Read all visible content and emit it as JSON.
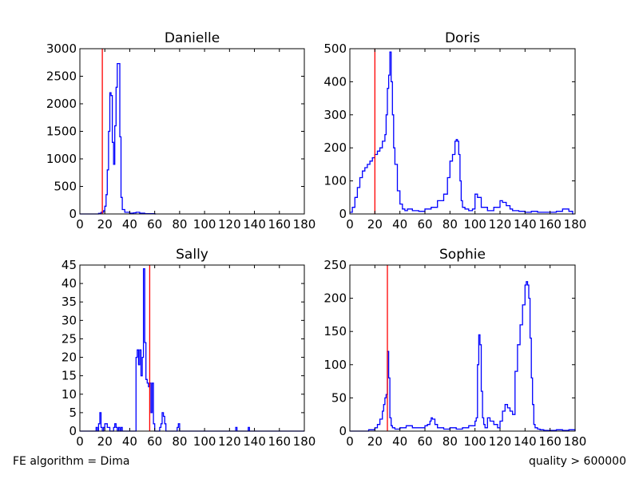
{
  "footer": {
    "left": "FE algorithm = Dima",
    "right": "quality > 600000"
  },
  "colors": {
    "histogram": "#0000ff",
    "threshold": "#ff0000",
    "axes": "#000000"
  },
  "chart_data": [
    {
      "type": "histogram",
      "title": "Danielle",
      "xlim": [
        0,
        180
      ],
      "ylim": [
        0,
        3000
      ],
      "xticks": [
        0,
        20,
        40,
        60,
        80,
        100,
        120,
        140,
        160,
        180
      ],
      "yticks": [
        0,
        500,
        1000,
        1500,
        2000,
        2500,
        3000
      ],
      "threshold_x": 18,
      "bin_width": 1,
      "x": [
        0,
        15,
        17,
        19,
        20,
        21,
        22,
        23,
        24,
        25,
        26,
        27,
        28,
        29,
        30,
        31,
        32,
        33,
        34,
        36,
        40,
        43,
        45,
        48,
        52,
        60
      ],
      "values": [
        0,
        10,
        30,
        60,
        140,
        350,
        800,
        1500,
        2200,
        2150,
        1300,
        900,
        1600,
        2300,
        2730,
        2730,
        1400,
        300,
        80,
        30,
        15,
        20,
        30,
        15,
        5,
        0
      ]
    },
    {
      "type": "histogram",
      "title": "Doris",
      "xlim": [
        0,
        180
      ],
      "ylim": [
        0,
        500
      ],
      "xticks": [
        0,
        20,
        40,
        60,
        80,
        100,
        120,
        140,
        160,
        180
      ],
      "yticks": [
        0,
        100,
        200,
        300,
        400,
        500
      ],
      "threshold_x": 20,
      "bin_width": 1,
      "x": [
        0,
        2,
        4,
        6,
        8,
        10,
        12,
        14,
        16,
        18,
        20,
        22,
        24,
        26,
        28,
        29,
        30,
        31,
        32,
        33,
        34,
        35,
        36,
        38,
        40,
        42,
        44,
        46,
        50,
        55,
        60,
        65,
        70,
        75,
        78,
        80,
        82,
        84,
        85,
        86,
        87,
        88,
        89,
        90,
        92,
        95,
        98,
        100,
        102,
        105,
        110,
        115,
        120,
        122,
        125,
        128,
        130,
        135,
        140,
        145,
        150,
        155,
        160,
        165,
        170,
        175,
        178
      ],
      "values": [
        5,
        20,
        50,
        80,
        110,
        130,
        140,
        150,
        160,
        170,
        180,
        190,
        200,
        220,
        240,
        300,
        380,
        420,
        490,
        400,
        300,
        200,
        150,
        70,
        30,
        15,
        10,
        15,
        10,
        8,
        15,
        20,
        40,
        60,
        110,
        160,
        180,
        220,
        225,
        220,
        180,
        100,
        40,
        20,
        15,
        10,
        15,
        60,
        50,
        20,
        10,
        20,
        40,
        35,
        25,
        15,
        10,
        8,
        5,
        8,
        5,
        5,
        5,
        8,
        15,
        8,
        0
      ]
    },
    {
      "type": "histogram",
      "title": "Sally",
      "xlim": [
        0,
        180
      ],
      "ylim": [
        0,
        45
      ],
      "xticks": [
        0,
        20,
        40,
        60,
        80,
        100,
        120,
        140,
        160,
        180
      ],
      "yticks": [
        0,
        5,
        10,
        15,
        20,
        25,
        30,
        35,
        40,
        45
      ],
      "threshold_x": 56,
      "bin_width": 1,
      "x": [
        0,
        12,
        13,
        14,
        15,
        16,
        17,
        18,
        19,
        20,
        21,
        22,
        23,
        24,
        25,
        26,
        27,
        28,
        29,
        30,
        31,
        32,
        33,
        34,
        35,
        36,
        37,
        38,
        45,
        46,
        47,
        48,
        49,
        50,
        51,
        52,
        53,
        54,
        55,
        56,
        57,
        58,
        59,
        60,
        61,
        62,
        63,
        64,
        65,
        66,
        67,
        68,
        69,
        70,
        71,
        72,
        73,
        78,
        79,
        80,
        124,
        125,
        126,
        134,
        135,
        136,
        180
      ],
      "values": [
        0,
        0,
        1,
        0,
        2,
        5,
        1,
        0,
        1,
        2,
        2,
        1,
        1,
        0,
        0,
        0,
        1,
        2,
        1,
        0,
        1,
        0,
        1,
        0,
        0,
        0,
        0,
        0,
        20,
        22,
        18,
        22,
        15,
        20,
        44,
        24,
        14,
        13,
        12,
        13,
        5,
        13,
        2,
        0,
        0,
        0,
        0,
        1,
        2,
        5,
        4,
        2,
        0,
        0,
        0,
        0,
        0,
        1,
        2,
        0,
        0,
        1,
        0,
        0,
        1,
        0,
        0
      ]
    },
    {
      "type": "histogram",
      "title": "Sophie",
      "xlim": [
        0,
        180
      ],
      "ylim": [
        0,
        250
      ],
      "xticks": [
        0,
        20,
        40,
        60,
        80,
        100,
        120,
        140,
        160,
        180
      ],
      "yticks": [
        0,
        50,
        100,
        150,
        200,
        250
      ],
      "threshold_x": 30,
      "bin_width": 1,
      "x": [
        0,
        15,
        20,
        22,
        24,
        26,
        27,
        28,
        29,
        30,
        31,
        32,
        33,
        34,
        36,
        40,
        45,
        50,
        55,
        60,
        62,
        64,
        65,
        66,
        68,
        70,
        75,
        80,
        85,
        90,
        95,
        100,
        101,
        102,
        103,
        104,
        105,
        106,
        107,
        108,
        110,
        112,
        115,
        118,
        120,
        122,
        124,
        126,
        128,
        130,
        132,
        134,
        136,
        138,
        140,
        141,
        142,
        143,
        144,
        145,
        146,
        147,
        148,
        150,
        152,
        155,
        160,
        165,
        170,
        175,
        180
      ],
      "values": [
        0,
        2,
        5,
        10,
        18,
        30,
        40,
        50,
        55,
        120,
        80,
        20,
        8,
        5,
        3,
        5,
        8,
        5,
        5,
        8,
        10,
        15,
        20,
        18,
        10,
        5,
        3,
        5,
        3,
        5,
        8,
        15,
        20,
        100,
        145,
        130,
        60,
        20,
        10,
        5,
        20,
        15,
        10,
        5,
        15,
        30,
        40,
        35,
        30,
        25,
        90,
        130,
        160,
        190,
        220,
        225,
        220,
        200,
        140,
        80,
        40,
        10,
        5,
        3,
        2,
        1,
        1,
        2,
        1,
        2,
        0
      ]
    }
  ]
}
